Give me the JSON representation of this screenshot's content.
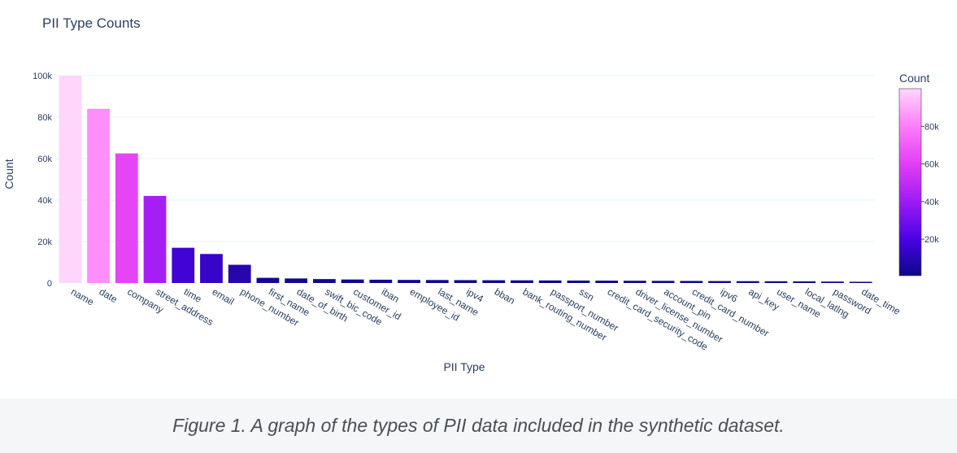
{
  "caption": "Figure 1. A graph of the types of PII data included in the synthetic dataset.",
  "chart_data": {
    "type": "bar",
    "title": "PII Type Counts",
    "xlabel": "PII Type",
    "ylabel": "Count",
    "ylim": [
      0,
      100000
    ],
    "yticks": [
      0,
      20000,
      40000,
      60000,
      80000,
      100000
    ],
    "ytick_labels": [
      "0",
      "20k",
      "40k",
      "60k",
      "80k",
      "100k"
    ],
    "grid": true,
    "categories": [
      "name",
      "date",
      "company",
      "street_address",
      "time",
      "email",
      "phone_number",
      "first_name",
      "date_of_birth",
      "swift_bic_code",
      "customer_id",
      "iban",
      "employee_id",
      "last_name",
      "ipv4",
      "bban",
      "bank_routing_number",
      "passport_number",
      "ssn",
      "credit_card_security_code",
      "driver_license_number",
      "account_pin",
      "credit_card_number",
      "ipv6",
      "api_key",
      "user_name",
      "local_latlng",
      "password",
      "date_time"
    ],
    "values": [
      100000,
      84000,
      62500,
      42000,
      17000,
      14000,
      8800,
      2500,
      2200,
      1900,
      1700,
      1600,
      1500,
      1450,
      1400,
      1350,
      1300,
      1250,
      1200,
      1150,
      1100,
      1050,
      1000,
      950,
      900,
      850,
      800,
      700,
      600
    ],
    "colorbar": {
      "title": "Count",
      "tick_values": [
        20000,
        40000,
        60000,
        80000
      ],
      "tick_labels": [
        "20k",
        "40k",
        "60k",
        "80k"
      ],
      "cmin": 600,
      "cmax": 100000,
      "colors": [
        "#0d0887",
        "#4b03e6",
        "#9f1cf5",
        "#e33ef6",
        "#fb7ef8",
        "#ffd6fb"
      ]
    }
  }
}
